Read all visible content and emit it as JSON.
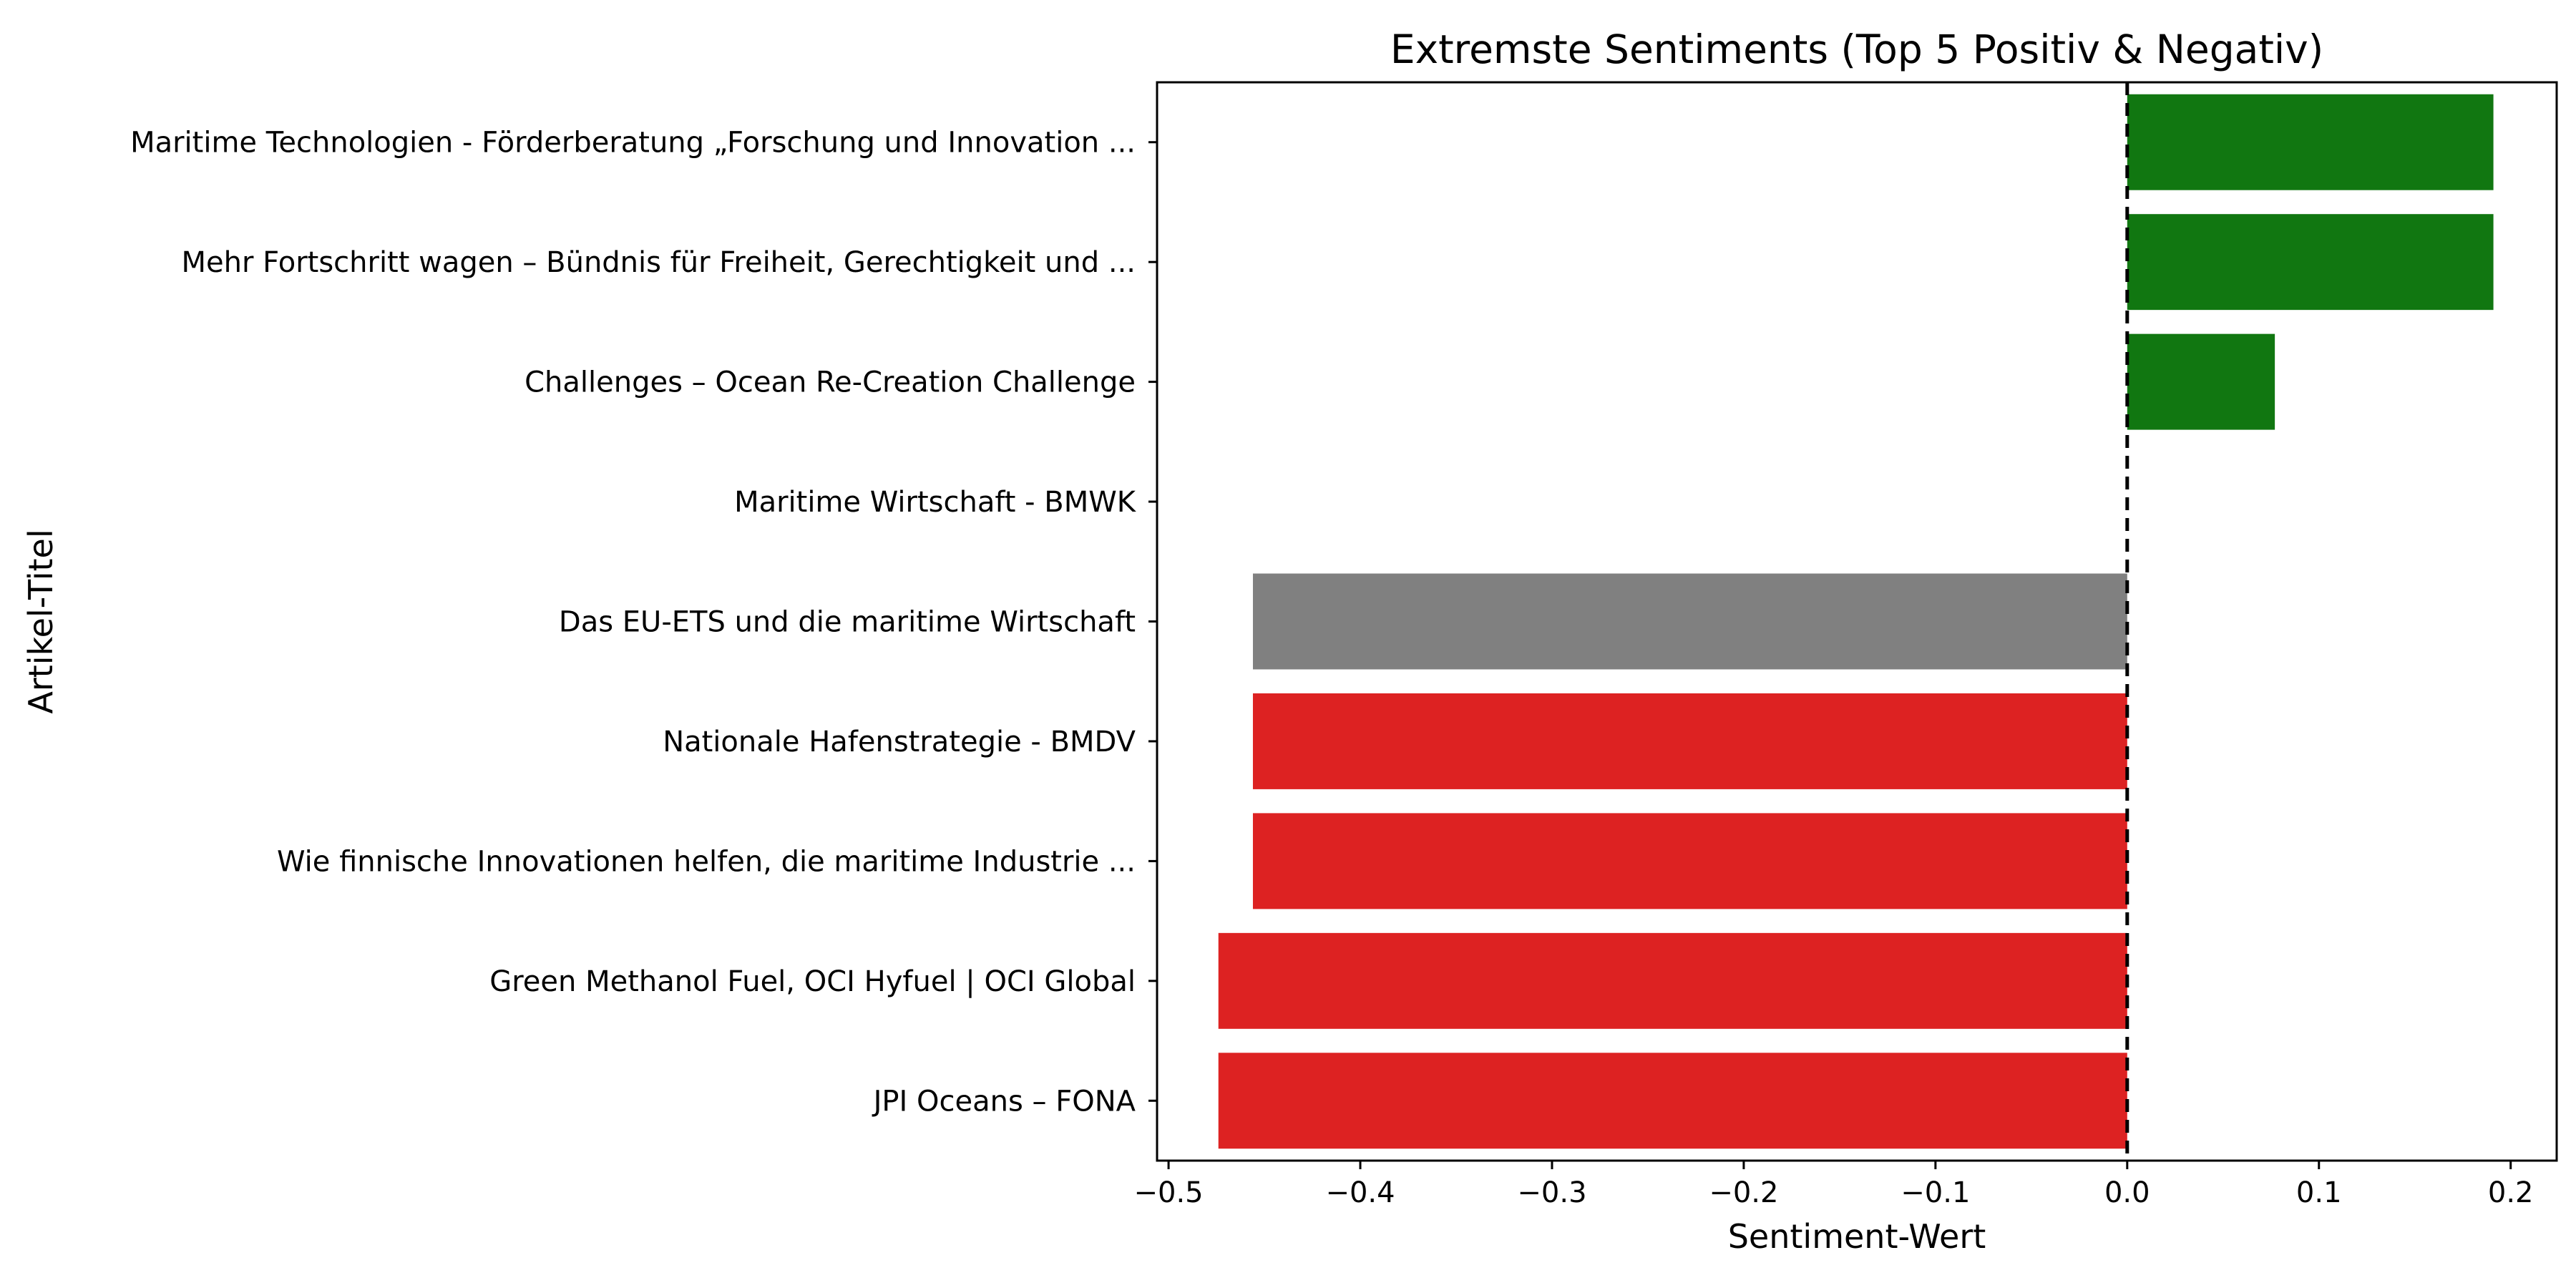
{
  "chart_data": {
    "type": "bar",
    "orientation": "horizontal",
    "title": "Extremste Sentiments (Top 5 Positiv & Negativ)",
    "xlabel": "Sentiment-Wert",
    "ylabel": "Artikel-Titel",
    "xlim": [
      -0.506,
      0.224
    ],
    "x_ticks": [
      -0.5,
      -0.4,
      -0.3,
      -0.2,
      -0.1,
      0.0,
      0.1,
      0.2
    ],
    "x_tick_labels": [
      "−0.5",
      "−0.4",
      "−0.3",
      "−0.2",
      "−0.1",
      "0.0",
      "0.1",
      "0.2"
    ],
    "grid": false,
    "legend": "none",
    "reference_line": {
      "x": 0.0,
      "style": "dashed",
      "color": "#000000"
    },
    "categories": [
      "Maritime Technologien - Förderberatung „Forschung und Innovation ...",
      "Mehr Fortschritt wagen – Bündnis für Freiheit, Gerechtigkeit und ...",
      "Challenges – Ocean Re-Creation Challenge",
      "Maritime Wirtschaft - BMWK",
      "Das EU-ETS und die maritime Wirtschaft",
      "Nationale Hafenstrategie - BMDV",
      "Wie finnische Innovationen helfen, die maritime Industrie ...",
      "Green Methanol Fuel, OCI Hyfuel | OCI Global",
      "JPI Oceans – FONA"
    ],
    "values": [
      0.191,
      0.191,
      0.077,
      0.0,
      -0.456,
      -0.456,
      -0.456,
      -0.474,
      -0.474
    ],
    "bar_colors": [
      "#117711",
      "#117711",
      "#117711",
      "#808080",
      "#808080",
      "#dd2222",
      "#dd2222",
      "#dd2222",
      "#dd2222"
    ]
  }
}
